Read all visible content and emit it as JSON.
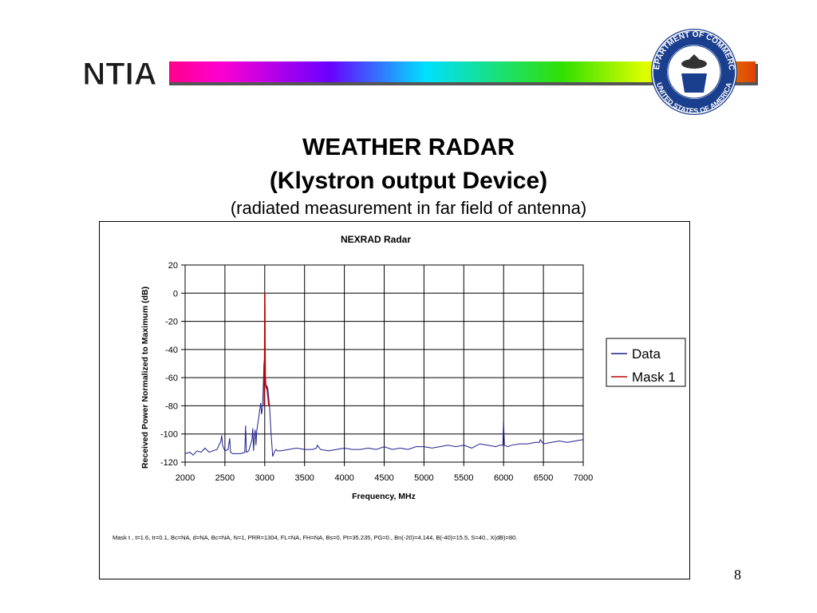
{
  "header": {
    "logo_text": "NTIA",
    "seal_text_top": "DEPARTMENT OF COMMERCE",
    "seal_text_bottom": "UNITED STATES OF AMERICA"
  },
  "slide": {
    "title_line1": "WEATHER RADAR",
    "title_line2": "(Klystron output Device)",
    "subtitle": "(radiated measurement in far field of antenna)",
    "page_number": "8"
  },
  "chart_data": {
    "type": "line",
    "title": "NEXRAD Radar",
    "xlabel": "Frequency, MHz",
    "ylabel": "Received Power Normalized to Maximum (dB)",
    "xlim": [
      2000,
      7000
    ],
    "ylim": [
      -120,
      20
    ],
    "xticks": [
      2000,
      2500,
      3000,
      3500,
      4000,
      4500,
      5000,
      5500,
      6000,
      6500,
      7000
    ],
    "yticks": [
      20,
      0,
      -20,
      -40,
      -60,
      -80,
      -100,
      -120
    ],
    "grid": true,
    "legend_position": "right",
    "footnote": "Mask  t , t=1.6, tr=0.1, Bc=NA, d=NA, Bc=NA, N=1, PRR=1304, FL=NA, FH=NA, Bs=0, Pt=35.235, PG=0., Bn(-20)=4.144, B(-40)=15.5, S=40., X(dB)=80.",
    "series": [
      {
        "name": "Data",
        "color": "#1f1f8f",
        "x": [
          2000,
          2060,
          2100,
          2150,
          2200,
          2250,
          2300,
          2400,
          2450,
          2460,
          2470,
          2500,
          2540,
          2550,
          2560,
          2570,
          2600,
          2700,
          2750,
          2760,
          2770,
          2800,
          2840,
          2850,
          2860,
          2870,
          2880,
          2890,
          2900,
          2920,
          2950,
          2960,
          2970,
          2980,
          2990,
          3000,
          3005,
          3010,
          3020,
          3030,
          3040,
          3060,
          3080,
          3100,
          3120,
          3140,
          3160,
          3200,
          3300,
          3400,
          3500,
          3600,
          3650,
          3660,
          3700,
          3800,
          3900,
          4000,
          4100,
          4200,
          4300,
          4400,
          4500,
          4600,
          4700,
          4800,
          4900,
          5000,
          5100,
          5200,
          5300,
          5400,
          5500,
          5600,
          5700,
          5800,
          5900,
          5950,
          5990,
          6000,
          6010,
          6050,
          6100,
          6200,
          6300,
          6400,
          6450,
          6460,
          6500,
          6600,
          6700,
          6800,
          6900,
          7000
        ],
        "y": [
          -114,
          -113,
          -115,
          -112,
          -113,
          -110,
          -113,
          -111,
          -105,
          -101,
          -108,
          -112,
          -111,
          -107,
          -103,
          -113,
          -114,
          -114,
          -113,
          -94,
          -113,
          -112,
          -104,
          -96,
          -112,
          -102,
          -97,
          -108,
          -98,
          -90,
          -78,
          -86,
          -82,
          -70,
          -50,
          -46,
          -60,
          -64,
          -68,
          -66,
          -68,
          -80,
          -100,
          -116,
          -113,
          -111,
          -112,
          -112,
          -111,
          -110,
          -111,
          -111,
          -110,
          -108,
          -111,
          -112,
          -111,
          -110,
          -111,
          -111,
          -110,
          -111,
          -109,
          -111,
          -110,
          -111,
          -109,
          -109,
          -110,
          -109,
          -108,
          -109,
          -108,
          -110,
          -107,
          -108,
          -109,
          -108,
          -108,
          -91,
          -108,
          -109,
          -108,
          -107,
          -107,
          -106,
          -106,
          -104,
          -107,
          -106,
          -105,
          -106,
          -105,
          -104
        ]
      },
      {
        "name": "Mask 1",
        "color": "#c00000",
        "x": [
          2992,
          2995,
          2998,
          3000,
          3002,
          3005,
          3008,
          3015,
          3030,
          3050
        ],
        "y": [
          -80,
          -60,
          -40,
          0,
          0,
          -40,
          -60,
          -66,
          -68,
          -80
        ]
      }
    ]
  }
}
